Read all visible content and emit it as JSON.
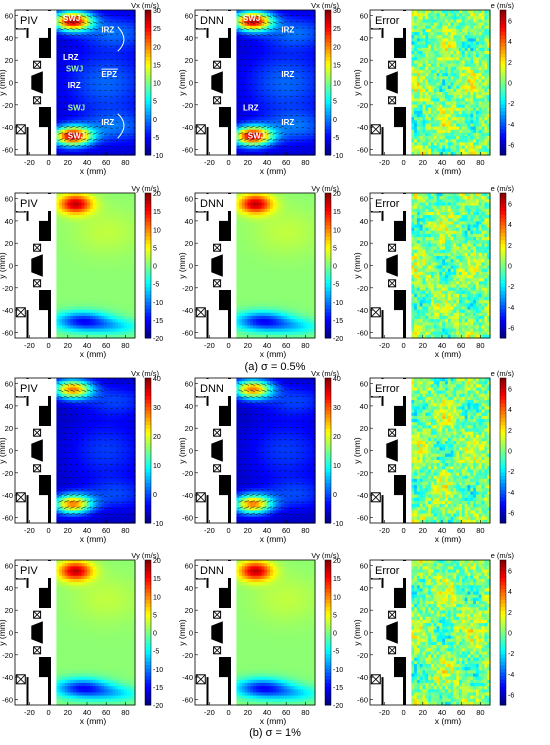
{
  "captions": {
    "a": "(a) σ = 0.5%",
    "b": "(b) σ = 1%"
  },
  "axes": {
    "xlabel": "x (mm)",
    "ylabel": "y (mm)",
    "x_range": [
      -35,
      90
    ],
    "y_range": [
      -65,
      65
    ],
    "x_ticks": [
      "-20",
      "0",
      "20",
      "40",
      "60",
      "80"
    ],
    "y_ticks": [
      "60",
      "40",
      "20",
      "0",
      "-20",
      "-40",
      "-60"
    ]
  },
  "panel_labels": [
    "PIV",
    "DNN",
    "Error"
  ],
  "colorbar_units": {
    "vx": "Vx (m/s)",
    "vy": "Vy (m/s)",
    "e": "e (m/s)"
  },
  "annotations": [
    {
      "text": "SWJ",
      "color": "#ffffff"
    },
    {
      "text": "IRZ",
      "color": "#ffffff"
    },
    {
      "text": "LRZ",
      "color": "#ffffff"
    },
    {
      "text": "SWJ",
      "color": "#9ff5a0"
    },
    {
      "text": "EPZ",
      "color": "#ffffff"
    },
    {
      "text": "IRZ",
      "color": "#ffffff"
    },
    {
      "text": "SWJ",
      "color": "#9ff5a0"
    },
    {
      "text": "IRZ",
      "color": "#ffffff"
    },
    {
      "text": "SWJ",
      "color": "#ffffff"
    }
  ],
  "chart_data": [
    {
      "type": "heatmap",
      "row": 1,
      "col": 1,
      "title": "PIV",
      "field": "Vx",
      "colorbar_label": "Vx (m/s)",
      "clim": [
        -10,
        30
      ],
      "cticks": [
        "30",
        "25",
        "20",
        "15",
        "10",
        "5",
        "0",
        "-5",
        "-10"
      ],
      "xlabel": "x (mm)",
      "ylabel": "y (mm)",
      "vectors": true
    },
    {
      "type": "heatmap",
      "row": 1,
      "col": 2,
      "title": "DNN",
      "field": "Vx",
      "colorbar_label": "Vx (m/s)",
      "clim": [
        -10,
        30
      ],
      "cticks": [
        "30",
        "25",
        "20",
        "15",
        "10",
        "5",
        "0",
        "-5",
        "-10"
      ],
      "xlabel": "x (mm)",
      "ylabel": "y (mm)",
      "vectors": true
    },
    {
      "type": "heatmap",
      "row": 1,
      "col": 3,
      "title": "Error",
      "field": "e",
      "colorbar_label": "e (m/s)",
      "clim": [
        -7,
        7
      ],
      "cticks": [
        "6",
        "4",
        "2",
        "0",
        "-2",
        "-4",
        "-6"
      ],
      "xlabel": "x (mm)",
      "ylabel": "y (mm)",
      "vectors": false
    },
    {
      "type": "heatmap",
      "row": 2,
      "col": 1,
      "title": "PIV",
      "field": "Vy",
      "colorbar_label": "Vy (m/s)",
      "clim": [
        -20,
        20
      ],
      "cticks": [
        "20",
        "15",
        "10",
        "5",
        "0",
        "-5",
        "-10",
        "-15",
        "-20"
      ],
      "xlabel": "x (mm)",
      "ylabel": "y (mm)",
      "vectors": false
    },
    {
      "type": "heatmap",
      "row": 2,
      "col": 2,
      "title": "DNN",
      "field": "Vy",
      "colorbar_label": "Vy (m/s)",
      "clim": [
        -20,
        20
      ],
      "cticks": [
        "20",
        "15",
        "10",
        "5",
        "0",
        "-5",
        "-10",
        "-15",
        "-20"
      ],
      "xlabel": "x (mm)",
      "ylabel": "y (mm)",
      "vectors": false
    },
    {
      "type": "heatmap",
      "row": 2,
      "col": 3,
      "title": "Error",
      "field": "e",
      "colorbar_label": "e (m/s)",
      "clim": [
        -7,
        7
      ],
      "cticks": [
        "6",
        "4",
        "2",
        "0",
        "-2",
        "-4",
        "-6"
      ],
      "xlabel": "x (mm)",
      "ylabel": "y (mm)",
      "vectors": false
    },
    {
      "type": "heatmap",
      "row": 3,
      "col": 1,
      "title": "PIV",
      "field": "Vx",
      "colorbar_label": "Vx (m/s)",
      "clim": [
        -10,
        40
      ],
      "cticks": [
        "40",
        "30",
        "20",
        "10",
        "0",
        "-10"
      ],
      "xlabel": "x (mm)",
      "ylabel": "y (mm)",
      "vectors": true
    },
    {
      "type": "heatmap",
      "row": 3,
      "col": 2,
      "title": "DNN",
      "field": "Vx",
      "colorbar_label": "Vx (m/s)",
      "clim": [
        -10,
        40
      ],
      "cticks": [
        "40",
        "30",
        "20",
        "10",
        "0",
        "-10"
      ],
      "xlabel": "x (mm)",
      "ylabel": "y (mm)",
      "vectors": true
    },
    {
      "type": "heatmap",
      "row": 3,
      "col": 3,
      "title": "Error",
      "field": "e",
      "colorbar_label": "e (m/s)",
      "clim": [
        -7,
        7
      ],
      "cticks": [
        "6",
        "4",
        "2",
        "0",
        "-2",
        "-4",
        "-6"
      ],
      "xlabel": "x (mm)",
      "ylabel": "y (mm)",
      "vectors": false
    },
    {
      "type": "heatmap",
      "row": 4,
      "col": 1,
      "title": "PIV",
      "field": "Vy",
      "colorbar_label": "Vy (m/s)",
      "clim": [
        -20,
        20
      ],
      "cticks": [
        "20",
        "15",
        "10",
        "5",
        "0",
        "-5",
        "-10",
        "-15",
        "-20"
      ],
      "xlabel": "x (mm)",
      "ylabel": "y (mm)",
      "vectors": false
    },
    {
      "type": "heatmap",
      "row": 4,
      "col": 2,
      "title": "DNN",
      "field": "Vy",
      "colorbar_label": "Vy (m/s)",
      "clim": [
        -20,
        20
      ],
      "cticks": [
        "20",
        "15",
        "10",
        "5",
        "0",
        "-5",
        "-10",
        "-15",
        "-20"
      ],
      "xlabel": "x (mm)",
      "ylabel": "y (mm)",
      "vectors": false
    },
    {
      "type": "heatmap",
      "row": 4,
      "col": 3,
      "title": "Error",
      "field": "e",
      "colorbar_label": "e (m/s)",
      "clim": [
        -7,
        7
      ],
      "cticks": [
        "6",
        "4",
        "2",
        "0",
        "-2",
        "-4",
        "-6"
      ],
      "xlabel": "x (mm)",
      "ylabel": "y (mm)",
      "vectors": false
    }
  ]
}
